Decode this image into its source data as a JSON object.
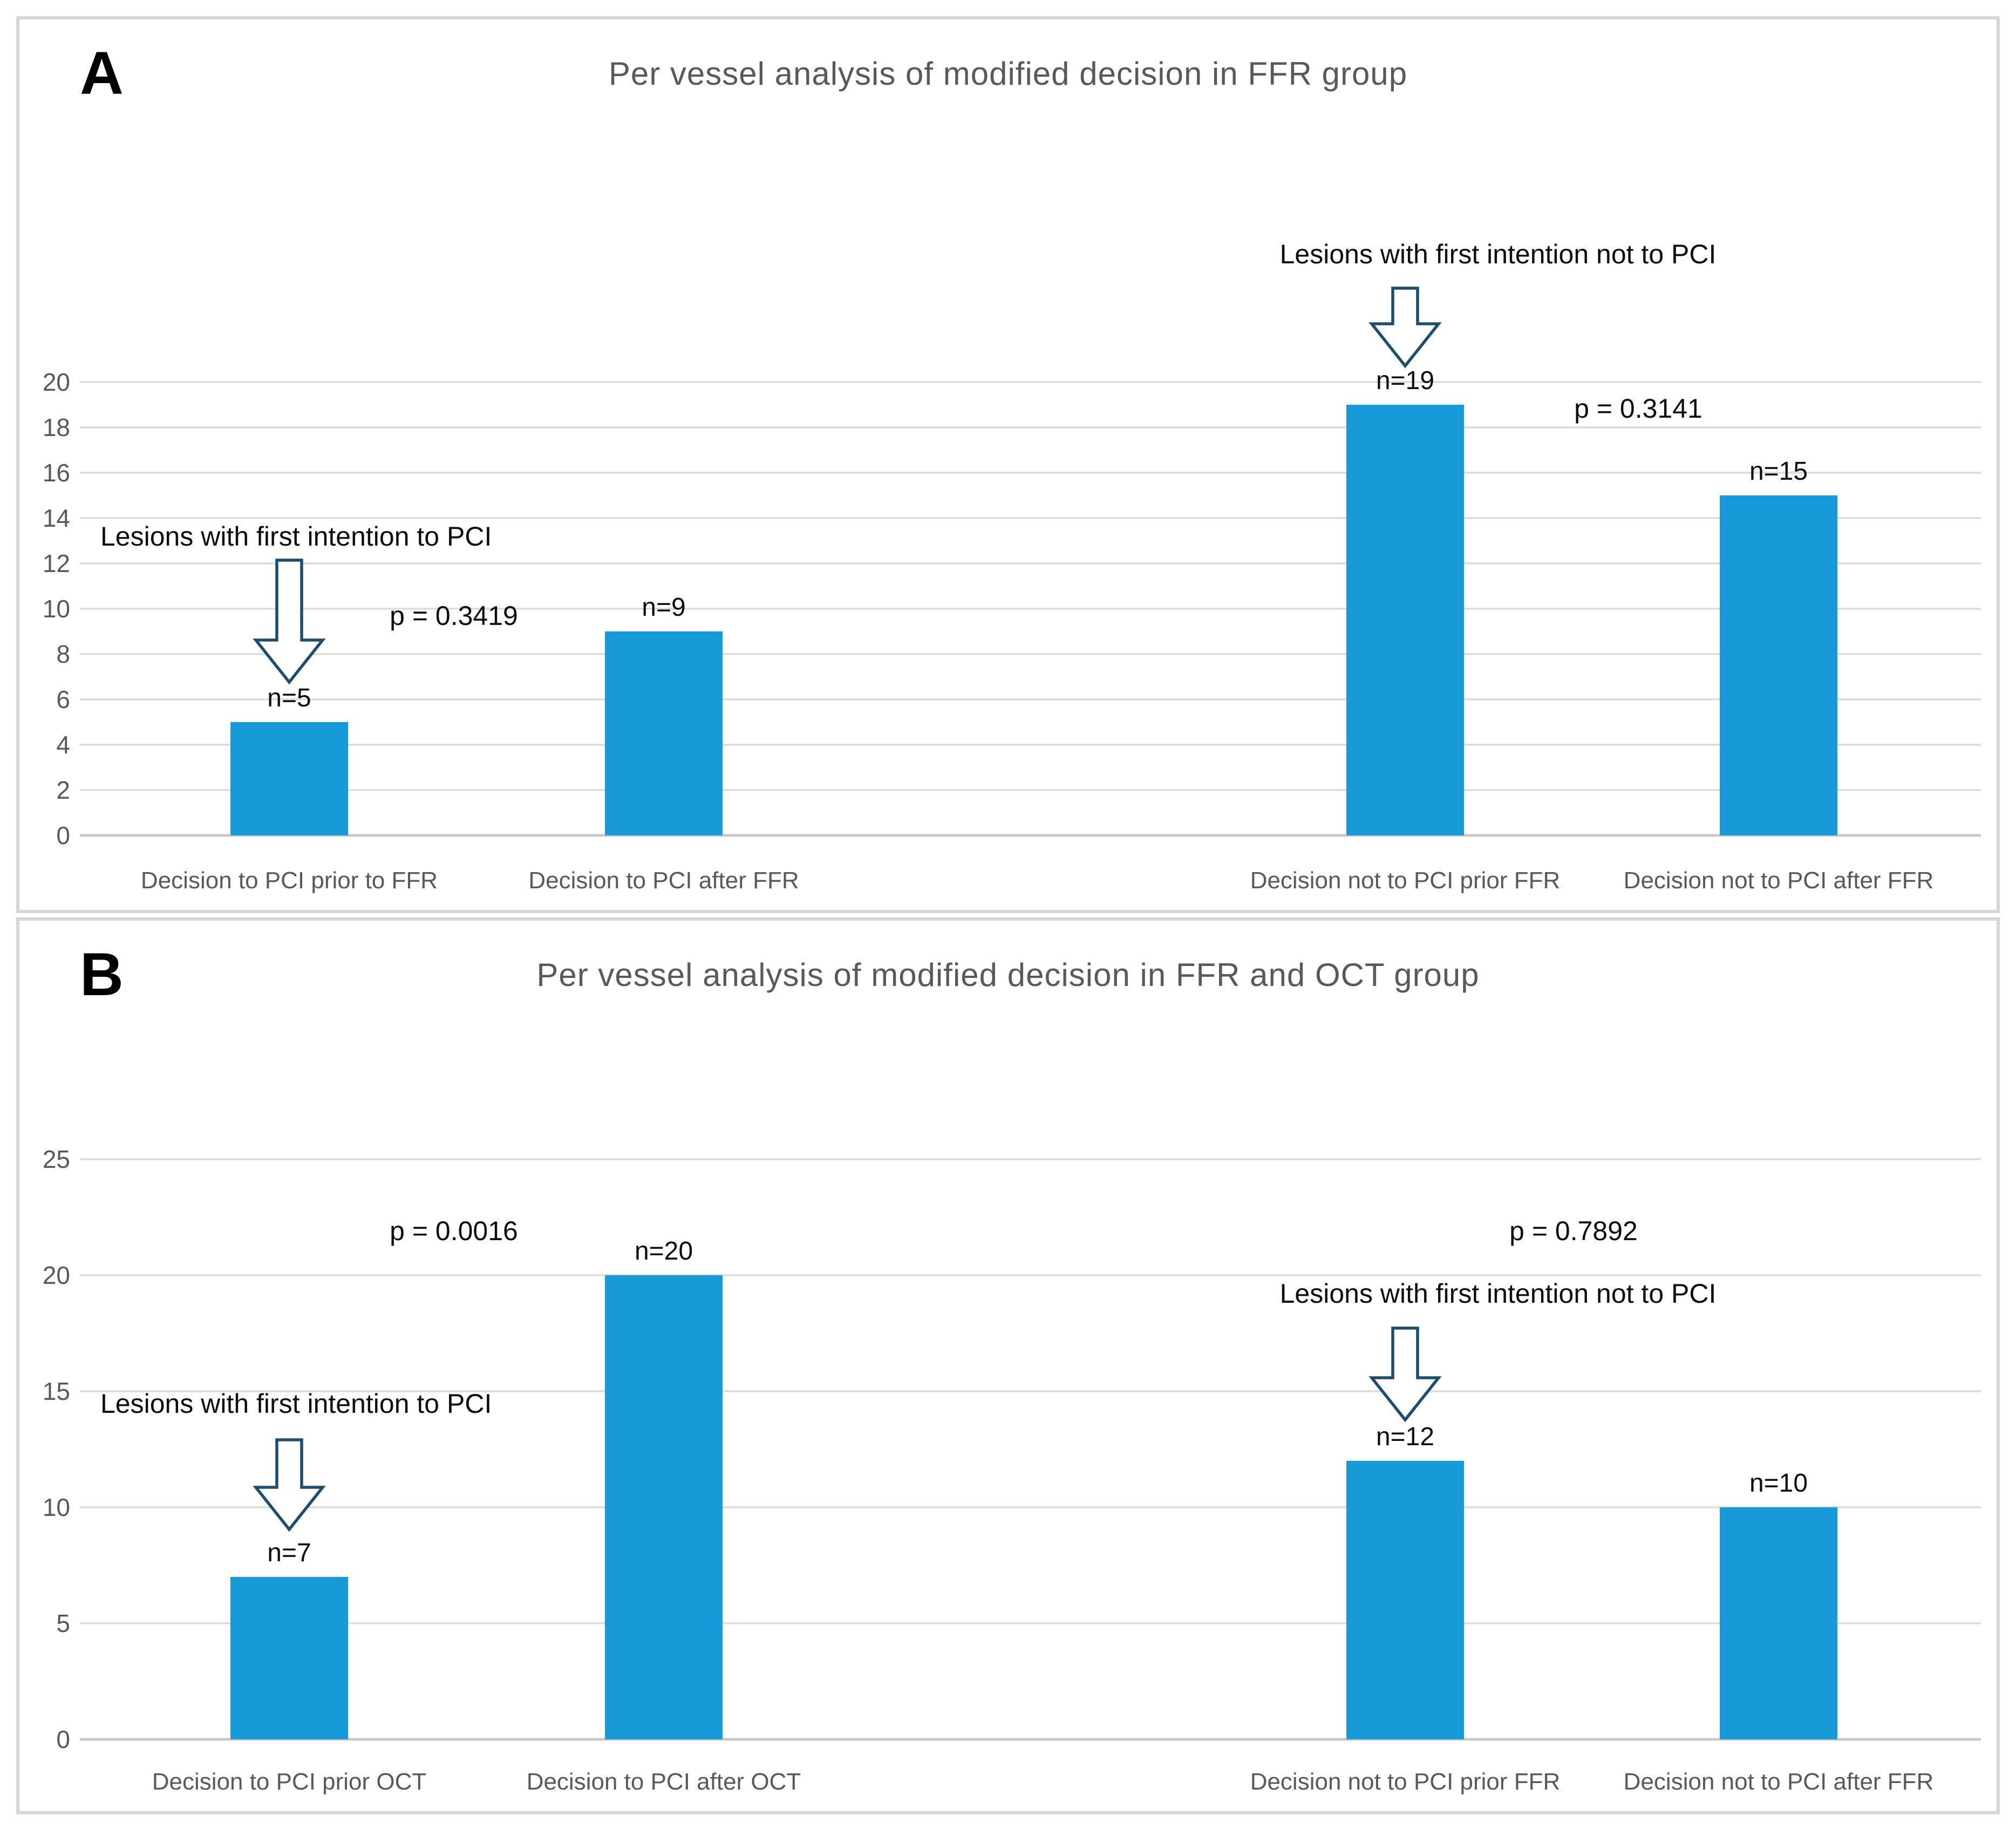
{
  "figure": {
    "panels": [
      {
        "letter": "A",
        "title": "Per vessel analysis of modified decision in FFR group"
      },
      {
        "letter": "B",
        "title": "Per vessel analysis of modified decision in FFR and OCT group"
      }
    ]
  },
  "colors": {
    "bar": "#189AD8",
    "gridline": "#DBDBDB",
    "axis_line": "#C9C9C9",
    "axis_text": "#595959",
    "title_text": "#595959",
    "annotation_text": "#0D0D0D",
    "arrow_outline": "#1E4D6E",
    "arrow_fill": "#FFFFFF",
    "panel_border": "#D6D6D6"
  },
  "chart_data": [
    {
      "type": "bar",
      "panel_letter": "A",
      "title": "Per vessel analysis of modified decision in FFR group",
      "categories": [
        "Decision to PCI prior to FFR",
        "Decision to PCI after FFR",
        "Decision not to PCI prior FFR",
        "Decision not to PCI after FFR"
      ],
      "values": [
        5,
        9,
        19,
        15
      ],
      "bar_labels": [
        "n=5",
        "n=9",
        "n=19",
        "n=15"
      ],
      "xlabel": "",
      "ylabel": "",
      "ylim": [
        0,
        20
      ],
      "ytick_step": 2,
      "grid": true,
      "legend": "none",
      "annotations": [
        {
          "kind": "group-label",
          "text": "Lesions with first intention to PCI",
          "arrow": "down",
          "points_to": "Decision to PCI prior to FFR"
        },
        {
          "kind": "group-label",
          "text": "Lesions with first intention not to PCI",
          "arrow": "down",
          "points_to": "Decision not to PCI prior FFR"
        },
        {
          "kind": "p-value",
          "text": "p = 0.3419",
          "compares": [
            "Decision to PCI prior to FFR",
            "Decision to PCI after FFR"
          ]
        },
        {
          "kind": "p-value",
          "text": "p = 0.3141",
          "compares": [
            "Decision not to PCI prior FFR",
            "Decision not to PCI after FFR"
          ]
        }
      ]
    },
    {
      "type": "bar",
      "panel_letter": "B",
      "title": "Per vessel analysis of modified decision in FFR and OCT group",
      "categories": [
        "Decision to PCI prior OCT",
        "Decision to PCI after OCT",
        "Decision not to PCI prior FFR",
        "Decision not to PCI after FFR"
      ],
      "values": [
        7,
        20,
        12,
        10
      ],
      "bar_labels": [
        "n=7",
        "n=20",
        "n=12",
        "n=10"
      ],
      "xlabel": "",
      "ylabel": "",
      "ylim": [
        0,
        25
      ],
      "ytick_step": 5,
      "grid": true,
      "legend": "none",
      "annotations": [
        {
          "kind": "group-label",
          "text": "Lesions with first intention to PCI",
          "arrow": "down",
          "points_to": "Decision to PCI prior OCT"
        },
        {
          "kind": "group-label",
          "text": "Lesions with first intention not to PCI",
          "arrow": "down",
          "points_to": "Decision not to PCI prior FFR"
        },
        {
          "kind": "p-value",
          "text": "p = 0.0016",
          "compares": [
            "Decision to PCI prior OCT",
            "Decision to PCI after OCT"
          ]
        },
        {
          "kind": "p-value",
          "text": "p = 0.7892",
          "compares": [
            "Decision not to PCI prior FFR",
            "Decision not to PCI after FFR"
          ]
        }
      ]
    }
  ]
}
